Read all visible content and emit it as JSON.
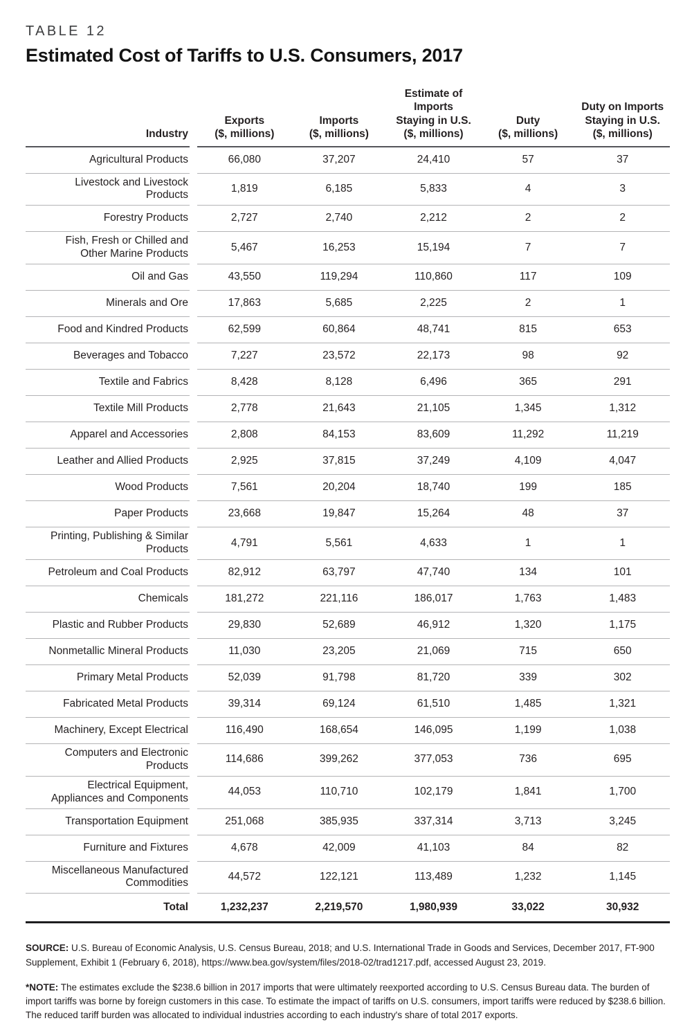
{
  "table_label": "TABLE 12",
  "title": "Estimated Cost of Tariffs to U.S. Consumers, 2017",
  "table": {
    "columns": [
      {
        "label": "Industry"
      },
      {
        "label": "Exports\n($, millions)"
      },
      {
        "label": "Imports\n($, millions)"
      },
      {
        "label": "Estimate of\nImports\nStaying in U.S.\n($, millions)"
      },
      {
        "label": "Duty\n($, millions)"
      },
      {
        "label": "Duty on Imports\nStaying in U.S.\n($, millions)"
      }
    ],
    "rows": [
      {
        "industry": "Agricultural Products",
        "values": [
          "66,080",
          "37,207",
          "24,410",
          "57",
          "37"
        ]
      },
      {
        "industry": "Livestock and Livestock Products",
        "values": [
          "1,819",
          "6,185",
          "5,833",
          "4",
          "3"
        ]
      },
      {
        "industry": "Forestry Products",
        "values": [
          "2,727",
          "2,740",
          "2,212",
          "2",
          "2"
        ]
      },
      {
        "industry": "Fish, Fresh or Chilled and Other Marine Products",
        "values": [
          "5,467",
          "16,253",
          "15,194",
          "7",
          "7"
        ]
      },
      {
        "industry": "Oil and Gas",
        "values": [
          "43,550",
          "119,294",
          "110,860",
          "117",
          "109"
        ]
      },
      {
        "industry": "Minerals and Ore",
        "values": [
          "17,863",
          "5,685",
          "2,225",
          "2",
          "1"
        ]
      },
      {
        "industry": "Food and Kindred Products",
        "values": [
          "62,599",
          "60,864",
          "48,741",
          "815",
          "653"
        ]
      },
      {
        "industry": "Beverages and Tobacco",
        "values": [
          "7,227",
          "23,572",
          "22,173",
          "98",
          "92"
        ]
      },
      {
        "industry": "Textile and Fabrics",
        "values": [
          "8,428",
          "8,128",
          "6,496",
          "365",
          "291"
        ]
      },
      {
        "industry": "Textile Mill Products",
        "values": [
          "2,778",
          "21,643",
          "21,105",
          "1,345",
          "1,312"
        ]
      },
      {
        "industry": "Apparel and Accessories",
        "values": [
          "2,808",
          "84,153",
          "83,609",
          "11,292",
          "11,219"
        ]
      },
      {
        "industry": "Leather and Allied Products",
        "values": [
          "2,925",
          "37,815",
          "37,249",
          "4,109",
          "4,047"
        ]
      },
      {
        "industry": "Wood Products",
        "values": [
          "7,561",
          "20,204",
          "18,740",
          "199",
          "185"
        ]
      },
      {
        "industry": "Paper Products",
        "values": [
          "23,668",
          "19,847",
          "15,264",
          "48",
          "37"
        ]
      },
      {
        "industry": "Printing, Publishing & Similar Products",
        "values": [
          "4,791",
          "5,561",
          "4,633",
          "1",
          "1"
        ]
      },
      {
        "industry": "Petroleum and Coal Products",
        "values": [
          "82,912",
          "63,797",
          "47,740",
          "134",
          "101"
        ]
      },
      {
        "industry": "Chemicals",
        "values": [
          "181,272",
          "221,116",
          "186,017",
          "1,763",
          "1,483"
        ]
      },
      {
        "industry": "Plastic and Rubber Products",
        "values": [
          "29,830",
          "52,689",
          "46,912",
          "1,320",
          "1,175"
        ]
      },
      {
        "industry": "Nonmetallic Mineral Products",
        "values": [
          "11,030",
          "23,205",
          "21,069",
          "715",
          "650"
        ]
      },
      {
        "industry": "Primary Metal Products",
        "values": [
          "52,039",
          "91,798",
          "81,720",
          "339",
          "302"
        ]
      },
      {
        "industry": "Fabricated Metal Products",
        "values": [
          "39,314",
          "69,124",
          "61,510",
          "1,485",
          "1,321"
        ]
      },
      {
        "industry": "Machinery, Except Electrical",
        "values": [
          "116,490",
          "168,654",
          "146,095",
          "1,199",
          "1,038"
        ]
      },
      {
        "industry": "Computers and Electronic Products",
        "values": [
          "114,686",
          "399,262",
          "377,053",
          "736",
          "695"
        ]
      },
      {
        "industry": "Electrical Equipment, Appliances and Components",
        "values": [
          "44,053",
          "110,710",
          "102,179",
          "1,841",
          "1,700"
        ]
      },
      {
        "industry": "Transportation Equipment",
        "values": [
          "251,068",
          "385,935",
          "337,314",
          "3,713",
          "3,245"
        ]
      },
      {
        "industry": "Furniture and Fixtures",
        "values": [
          "4,678",
          "42,009",
          "41,103",
          "84",
          "82"
        ]
      },
      {
        "industry": "Miscellaneous Manufactured Commodities",
        "values": [
          "44,572",
          "122,121",
          "113,489",
          "1,232",
          "1,145"
        ]
      },
      {
        "industry": "Total",
        "is_total": true,
        "values": [
          "1,232,237",
          "2,219,570",
          "1,980,939",
          "33,022",
          "30,932"
        ]
      }
    ]
  },
  "source_note": {
    "label": "SOURCE:",
    "text": " U.S. Bureau of Economic Analysis, U.S. Census Bureau, 2018; and U.S. International Trade in Goods and Services, December 2017, FT-900 Supplement, Exhibit 1 (February 6, 2018), https://www.bea.gov/system/files/2018-02/trad1217.pdf, accessed August 23, 2019."
  },
  "footnote": {
    "label": "*NOTE:",
    "text": " The estimates exclude the $238.6 billion in 2017 imports that were ultimately reexported according to U.S. Census Bureau data. The burden of import tariffs was borne by foreign customers in this case. To estimate the impact of tariffs on U.S. consumers, import tariffs were reduced by $238.6 billion. The reduced tariff burden was allocated to individual industries according to each industry's share of total 2017 exports."
  }
}
